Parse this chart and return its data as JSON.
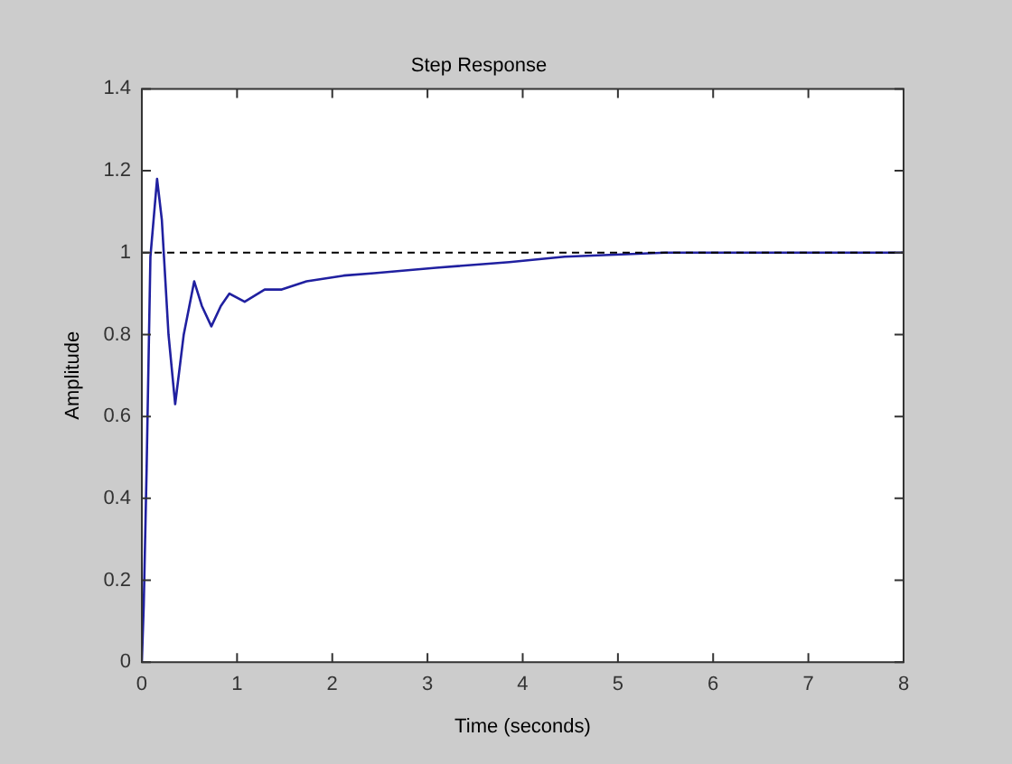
{
  "chart_data": {
    "type": "line",
    "title": "Step Response",
    "xlabel": "Time (seconds)",
    "ylabel": "Amplitude",
    "x": [
      0,
      0.02,
      0.05,
      0.09,
      0.16,
      0.21,
      0.28,
      0.35,
      0.44,
      0.55,
      0.63,
      0.73,
      0.83,
      0.92,
      1.08,
      1.29,
      1.47,
      1.73,
      2.12,
      2.44,
      3.09,
      3.86,
      4.44,
      5.5,
      8
    ],
    "series": [
      {
        "color": "#2020a0",
        "values": [
          0,
          0.14,
          0.47,
          0.99,
          1.18,
          1.08,
          0.8,
          0.63,
          0.8,
          0.93,
          0.87,
          0.82,
          0.87,
          0.9,
          0.88,
          0.91,
          0.91,
          0.93,
          0.944,
          0.95,
          0.963,
          0.977,
          0.99,
          1,
          1
        ]
      }
    ],
    "xlim": [
      0,
      8
    ],
    "xticks": [
      0,
      1,
      2,
      3,
      4,
      5,
      6,
      7,
      8
    ],
    "ylim": [
      0,
      1.4
    ],
    "yticks": [
      0,
      0.2,
      0.4,
      0.6,
      0.8,
      1,
      1.2,
      1.4
    ],
    "ref_lines": [
      {
        "axis": "y",
        "value": 1,
        "color": "#000000",
        "line_style": "dashed"
      }
    ],
    "grid": false,
    "legend": false,
    "marker": "none",
    "line_style": "solid"
  }
}
